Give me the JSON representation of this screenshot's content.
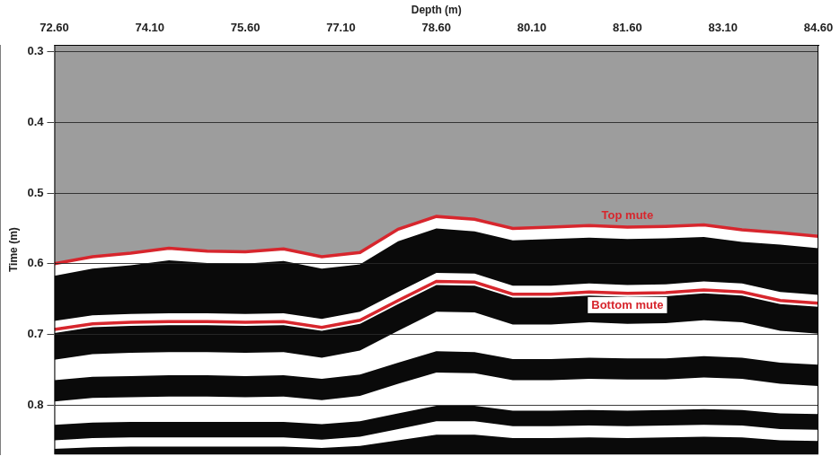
{
  "chart_data": {
    "type": "line",
    "x_label": "Depth (m)",
    "y_label": "Time (m)",
    "x": [
      72.6,
      73.2,
      73.8,
      74.4,
      75.0,
      75.6,
      76.2,
      76.8,
      77.4,
      78.0,
      78.6,
      79.2,
      79.8,
      80.4,
      81.0,
      81.6,
      82.2,
      82.8,
      83.4,
      84.0,
      84.6
    ],
    "series": [
      {
        "name": "Top mute",
        "color": "#d7262d",
        "values": [
          0.6,
          0.59,
          0.585,
          0.578,
          0.582,
          0.583,
          0.579,
          0.59,
          0.584,
          0.551,
          0.533,
          0.537,
          0.55,
          0.548,
          0.546,
          0.548,
          0.547,
          0.545,
          0.552,
          0.556,
          0.561
        ]
      },
      {
        "name": "Bottom mute",
        "color": "#d7262d",
        "values": [
          0.693,
          0.685,
          0.683,
          0.682,
          0.682,
          0.683,
          0.682,
          0.69,
          0.68,
          0.652,
          0.625,
          0.626,
          0.643,
          0.643,
          0.64,
          0.642,
          0.641,
          0.637,
          0.64,
          0.652,
          0.656
        ]
      }
    ],
    "bands": [
      {
        "color": "#0a0a0a",
        "upper": [
          0.617,
          0.607,
          0.602,
          0.595,
          0.599,
          0.6,
          0.596,
          0.607,
          0.601,
          0.568,
          0.55,
          0.554,
          0.567,
          0.565,
          0.563,
          0.565,
          0.564,
          0.562,
          0.569,
          0.573,
          0.578
        ],
        "lower": [
          0.681,
          0.673,
          0.671,
          0.67,
          0.67,
          0.671,
          0.67,
          0.678,
          0.668,
          0.64,
          0.613,
          0.614,
          0.631,
          0.631,
          0.628,
          0.63,
          0.629,
          0.625,
          0.628,
          0.64,
          0.644
        ]
      },
      {
        "color": "#0a0a0a",
        "upper": [
          0.698,
          0.69,
          0.688,
          0.687,
          0.687,
          0.688,
          0.687,
          0.695,
          0.685,
          0.657,
          0.63,
          0.631,
          0.648,
          0.648,
          0.645,
          0.647,
          0.646,
          0.642,
          0.645,
          0.657,
          0.661
        ],
        "lower": [
          0.736,
          0.728,
          0.726,
          0.725,
          0.725,
          0.726,
          0.725,
          0.733,
          0.723,
          0.695,
          0.668,
          0.669,
          0.686,
          0.686,
          0.683,
          0.685,
          0.684,
          0.68,
          0.683,
          0.695,
          0.699
        ]
      },
      {
        "color": "#0a0a0a",
        "upper": [
          0.765,
          0.76,
          0.759,
          0.758,
          0.758,
          0.759,
          0.758,
          0.763,
          0.757,
          0.74,
          0.724,
          0.725,
          0.735,
          0.735,
          0.733,
          0.734,
          0.734,
          0.731,
          0.733,
          0.74,
          0.743
        ],
        "lower": [
          0.795,
          0.79,
          0.789,
          0.788,
          0.788,
          0.789,
          0.788,
          0.793,
          0.787,
          0.77,
          0.754,
          0.755,
          0.765,
          0.765,
          0.763,
          0.764,
          0.764,
          0.761,
          0.763,
          0.77,
          0.773
        ]
      },
      {
        "color": "#0a0a0a",
        "upper": [
          0.828,
          0.825,
          0.824,
          0.824,
          0.824,
          0.824,
          0.824,
          0.827,
          0.823,
          0.812,
          0.801,
          0.801,
          0.808,
          0.808,
          0.807,
          0.808,
          0.807,
          0.806,
          0.807,
          0.812,
          0.813
        ],
        "lower": [
          0.85,
          0.847,
          0.846,
          0.846,
          0.846,
          0.846,
          0.846,
          0.849,
          0.845,
          0.834,
          0.823,
          0.823,
          0.83,
          0.83,
          0.829,
          0.83,
          0.829,
          0.828,
          0.829,
          0.834,
          0.835
        ]
      },
      {
        "color": "#0a0a0a",
        "upper": [
          0.862,
          0.86,
          0.859,
          0.859,
          0.859,
          0.859,
          0.859,
          0.861,
          0.858,
          0.85,
          0.842,
          0.842,
          0.847,
          0.847,
          0.846,
          0.847,
          0.846,
          0.845,
          0.846,
          0.85,
          0.851
        ],
        "lower": [
          0.87,
          0.87,
          0.87,
          0.87,
          0.87,
          0.87,
          0.87,
          0.87,
          0.87,
          0.87,
          0.87,
          0.87,
          0.87,
          0.87,
          0.87,
          0.87,
          0.87,
          0.87,
          0.87,
          0.87,
          0.87
        ]
      }
    ],
    "xlim": [
      72.6,
      84.6
    ],
    "xticks": [
      {
        "value": 72.6,
        "label": "72.60"
      },
      {
        "value": 74.1,
        "label": "74.10"
      },
      {
        "value": 75.6,
        "label": "75.60"
      },
      {
        "value": 77.1,
        "label": "77.10"
      },
      {
        "value": 78.6,
        "label": "78.60"
      },
      {
        "value": 80.1,
        "label": "80.10"
      },
      {
        "value": 81.6,
        "label": "81.60"
      },
      {
        "value": 83.1,
        "label": "83.10"
      },
      {
        "value": 84.6,
        "label": "84.60"
      }
    ],
    "ylim": [
      0.29,
      0.87
    ],
    "yticks": [
      0.3,
      0.4,
      0.5,
      0.6,
      0.7,
      0.8
    ],
    "grid": true
  }
}
